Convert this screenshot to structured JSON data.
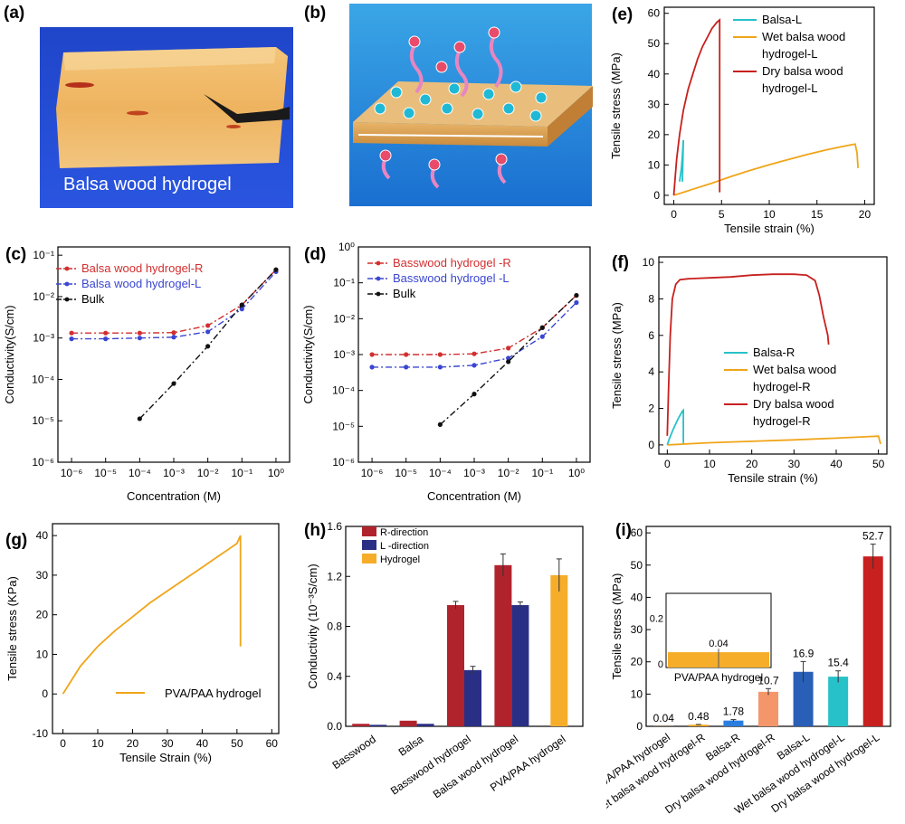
{
  "photos": {
    "a": {
      "label": "(a)",
      "caption": "Balsa wood hydrogel"
    },
    "b": {
      "label": "(b)"
    }
  },
  "chart_data": [
    {
      "id": "e",
      "label": "(e)",
      "type": "line",
      "xlabel": "Tensile strain (%)",
      "ylabel": "Tensile stress (MPa)",
      "xlim": [
        -1,
        21
      ],
      "ylim": [
        -3,
        62
      ],
      "xticks": [
        0,
        5,
        10,
        15,
        20
      ],
      "yticks": [
        0,
        10,
        20,
        30,
        40,
        50,
        60
      ],
      "legend": [
        "Balsa-L",
        "Wet balsa wood",
        "hydrogel-L",
        "Dry balsa wood",
        "hydrogel-L"
      ],
      "series": [
        {
          "name": "Balsa-L",
          "color": "#27c1c9",
          "x": [
            0.6,
            0.8,
            0.9,
            0.95,
            0.98,
            1.0,
            0.9
          ],
          "y": [
            4.5,
            9,
            13,
            16,
            17.5,
            18.2,
            4.5
          ]
        },
        {
          "name": "Wet balsa wood hydrogel-L",
          "color": "#f0a519",
          "x": [
            0,
            1,
            2,
            4,
            6,
            8,
            10,
            12,
            14,
            16,
            18,
            19,
            19.2,
            19.3
          ],
          "y": [
            0,
            1.0,
            2.0,
            4.0,
            6.2,
            8.2,
            10.1,
            11.8,
            13.5,
            15.0,
            16.3,
            16.9,
            14,
            9
          ]
        },
        {
          "name": "Dry balsa wood hydrogel-L",
          "color": "#c8201e",
          "x": [
            0,
            0.3,
            0.6,
            1,
            1.5,
            2,
            2.5,
            3,
            3.5,
            4,
            4.5,
            4.8,
            4.8
          ],
          "y": [
            0,
            12,
            20,
            28,
            35,
            40,
            45,
            49,
            52,
            55,
            57,
            57.8,
            1
          ]
        }
      ]
    },
    {
      "id": "c",
      "label": "(c)",
      "type": "line",
      "xlabel": "Concentration (M)",
      "ylabel": "Conductivity(S/cm)",
      "xscale": "log",
      "yscale": "log",
      "xticks": [
        "10⁻⁶",
        "10⁻⁵",
        "10⁻⁴",
        "10⁻³",
        "10⁻²",
        "10⁻¹",
        "10⁰"
      ],
      "yticks": [
        "10⁻⁶",
        "10⁻⁵",
        "10⁻⁴",
        "10⁻³",
        "10⁻²",
        "10⁻¹"
      ],
      "xlog": [
        -6,
        -5,
        -4,
        -3,
        -2,
        -1,
        0
      ],
      "series": [
        {
          "name": "Balsa wood hydrogel-R",
          "color": "#d22f2f",
          "dash": "7 3 2 3",
          "marker": "dot",
          "x": [
            -6,
            -5,
            -4,
            -3,
            -2,
            -1,
            0
          ],
          "y": [
            -2.88,
            -2.88,
            -2.88,
            -2.87,
            -2.7,
            -2.2,
            -1.35
          ]
        },
        {
          "name": "Balsa wood hydrogel-L",
          "color": "#3a46d0",
          "dash": "7 3 2 3",
          "marker": "tri",
          "x": [
            -6,
            -5,
            -4,
            -3,
            -2,
            -1,
            0
          ],
          "y": [
            -3.02,
            -3.02,
            -3.0,
            -2.98,
            -2.85,
            -2.3,
            -1.4
          ]
        },
        {
          "name": "Bulk",
          "color": "#111111",
          "dash": "7 3 2 3",
          "marker": "dot",
          "x": [
            -4,
            -3,
            -2,
            -1,
            0
          ],
          "y": [
            -4.95,
            -4.1,
            -3.2,
            -2.2,
            -1.35
          ]
        }
      ]
    },
    {
      "id": "d",
      "label": "(d)",
      "type": "line",
      "xlabel": "Concentration (M)",
      "ylabel": "Conductivity(S/cm)",
      "xscale": "log",
      "yscale": "log",
      "xticks": [
        "10⁻⁶",
        "10⁻⁵",
        "10⁻⁴",
        "10⁻³",
        "10⁻²",
        "10⁻¹",
        "10⁰"
      ],
      "yticks": [
        "10⁻⁶",
        "10⁻⁵",
        "10⁻⁴",
        "10⁻³",
        "10⁻²",
        "10⁻¹",
        "10⁰"
      ],
      "xlog": [
        -6,
        -5,
        -4,
        -3,
        -2,
        -1,
        0
      ],
      "series": [
        {
          "name": "Basswood hydrogel -R",
          "color": "#d22f2f",
          "dash": "7 3 2 3",
          "marker": "dot",
          "x": [
            -6,
            -5,
            -4,
            -3,
            -2,
            -1,
            0
          ],
          "y": [
            -3.0,
            -3.0,
            -3.0,
            -2.98,
            -2.82,
            -2.25,
            -1.35
          ]
        },
        {
          "name": "Basswood hydrogel -L",
          "color": "#3a46d0",
          "dash": "7 3 2 3",
          "marker": "tri",
          "x": [
            -6,
            -5,
            -4,
            -3,
            -2,
            -1,
            0
          ],
          "y": [
            -3.35,
            -3.35,
            -3.35,
            -3.3,
            -3.1,
            -2.5,
            -1.55
          ]
        },
        {
          "name": "Bulk",
          "color": "#111111",
          "dash": "7 3 2 3",
          "marker": "dot",
          "x": [
            -4,
            -3,
            -2,
            -1,
            0
          ],
          "y": [
            -4.95,
            -4.1,
            -3.2,
            -2.25,
            -1.35
          ]
        }
      ]
    },
    {
      "id": "f",
      "label": "(f)",
      "type": "line",
      "xlabel": "Tensile strain (%)",
      "ylabel": "Tensile stress (MPa)",
      "xlim": [
        -2,
        52
      ],
      "ylim": [
        -0.5,
        10.3
      ],
      "xticks": [
        0,
        10,
        20,
        30,
        40,
        50
      ],
      "yticks": [
        0,
        2,
        4,
        6,
        8,
        10
      ],
      "legend": [
        "Balsa-R",
        "Wet balsa wood",
        "hydrogel-R",
        "Dry balsa wood",
        "hydrogel-R"
      ],
      "series": [
        {
          "name": "Balsa-R",
          "color": "#27c1c9",
          "x": [
            0,
            0.5,
            1.5,
            2.5,
            3.2,
            3.6,
            3.8,
            3.8
          ],
          "y": [
            0,
            0.35,
            0.9,
            1.4,
            1.7,
            1.85,
            1.9,
            0.1
          ]
        },
        {
          "name": "Wet balsa wood hydrogel-R",
          "color": "#f0a519",
          "x": [
            0,
            10,
            20,
            30,
            40,
            48,
            50,
            50.5
          ],
          "y": [
            0,
            0.12,
            0.2,
            0.28,
            0.37,
            0.46,
            0.48,
            0.05
          ]
        },
        {
          "name": "Dry balsa wood hydrogel-R",
          "color": "#c8201e",
          "x": [
            0,
            0.3,
            0.7,
            1.2,
            2,
            3,
            5,
            10,
            15,
            20,
            25,
            30,
            33,
            35,
            36,
            37,
            38,
            38.2
          ],
          "y": [
            0.5,
            3,
            6,
            8,
            8.8,
            9.05,
            9.1,
            9.15,
            9.2,
            9.3,
            9.35,
            9.35,
            9.3,
            9.0,
            8.2,
            7.0,
            6.0,
            5.5
          ]
        }
      ]
    },
    {
      "id": "g",
      "label": "(g)",
      "type": "line",
      "xlabel": "Tensile Strain (%)",
      "ylabel": "Tensile stress  (KPa)",
      "xlim": [
        -3,
        62
      ],
      "ylim": [
        -10,
        43
      ],
      "xticks": [
        0,
        10,
        20,
        30,
        40,
        50,
        60
      ],
      "yticks": [
        -10,
        0,
        10,
        20,
        30,
        40
      ],
      "legend": [
        "PVA/PAA hydrogel"
      ],
      "series": [
        {
          "name": "PVA/PAA hydrogel",
          "color": "#f0a519",
          "x": [
            0,
            5,
            10,
            15,
            20,
            25,
            30,
            35,
            40,
            45,
            50,
            51,
            51
          ],
          "y": [
            0,
            7,
            12,
            16,
            19.5,
            23,
            26,
            29,
            32,
            35,
            38,
            40,
            12
          ]
        }
      ]
    },
    {
      "id": "h",
      "label": "(h)",
      "type": "bar",
      "ylabel": "Conductivity (10⁻³S/cm)",
      "ylim": [
        0,
        1.6
      ],
      "yticks": [
        "0.0",
        "0.4",
        "0.8",
        "1.2",
        "1.6"
      ],
      "categories": [
        "Basswood",
        "Balsa",
        "Basswood  hydrogel",
        "Balsa wood hydrogel",
        "PVA/PAA hydrogel"
      ],
      "legend": [
        "R-direction",
        "L -direction",
        "Hydrogel"
      ],
      "series": [
        {
          "name": "R-direction",
          "color": "#b0232d",
          "values": [
            0.02,
            0.045,
            0.97,
            1.29,
            null
          ],
          "err": [
            0,
            0,
            0.03,
            0.09,
            0
          ]
        },
        {
          "name": "L -direction",
          "color": "#2a2f86",
          "values": [
            0.012,
            0.02,
            0.45,
            0.97,
            null
          ],
          "err": [
            0,
            0,
            0.03,
            0.025,
            0
          ]
        },
        {
          "name": "Hydrogel",
          "color": "#f6ad2a",
          "values": [
            null,
            null,
            null,
            null,
            1.21
          ],
          "err": [
            0,
            0,
            0,
            0,
            0.13
          ]
        }
      ]
    },
    {
      "id": "i",
      "label": "(i)",
      "type": "bar",
      "ylabel": "Tensile stress (MPa)",
      "ylim": [
        0,
        62
      ],
      "yticks": [
        0,
        10,
        20,
        30,
        40,
        50,
        60
      ],
      "categories": [
        "PVA/PAA hydrogel",
        "Wet balsa wood hydrogel-R",
        "Balsa-R",
        "Dry balsa wood hydrogel-R",
        "Balsa-L",
        "Wet balsa wood hydrogel-L",
        "Dry balsa wood hydrogel-L"
      ],
      "values": [
        0.04,
        0.48,
        1.78,
        10.7,
        16.9,
        15.4,
        52.7
      ],
      "value_labels": [
        "0.04",
        "0.48",
        "1.78",
        "10.7",
        "16.9",
        "15.4",
        "52.7"
      ],
      "err": [
        0,
        0.1,
        0.3,
        1.0,
        3.2,
        1.8,
        3.8
      ],
      "colors": [
        "#f6ad2a",
        "#f0a519",
        "#2a7ee0",
        "#f5956a",
        "#2a5fb8",
        "#27c1c9",
        "#c8201e"
      ],
      "inset": {
        "value": 0.04,
        "value_label": "0.04",
        "ytick": "0.2",
        "ytick0": "0",
        "label": "PVA/PAA hydrogel",
        "ylim": [
          0,
          0.3
        ]
      }
    }
  ]
}
